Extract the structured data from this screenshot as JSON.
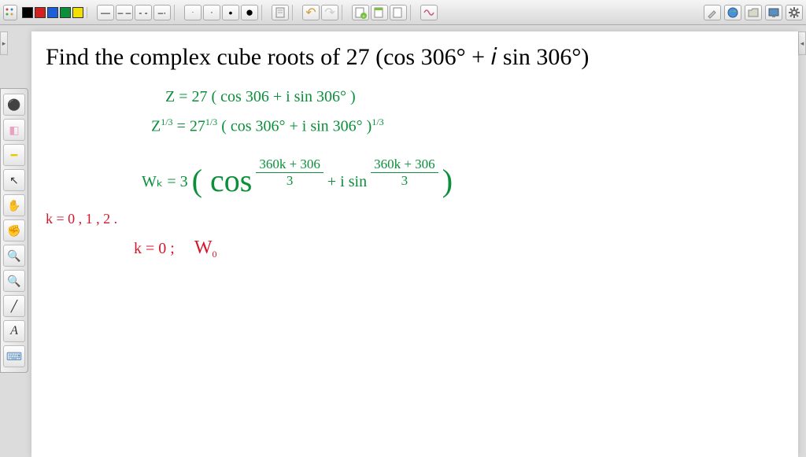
{
  "toolbar": {
    "colors": [
      "#000000",
      "#d42020",
      "#1e5fd9",
      "#0b8f3a",
      "#f2e000"
    ],
    "dash_icons": [
      "—",
      "– –",
      "- -",
      "–·"
    ],
    "dot_icons": [
      "·",
      "·",
      "•",
      "●"
    ],
    "undo_icon": "↶",
    "redo_icon": "↷",
    "note_icons": [
      "📄",
      "📄",
      "📄"
    ],
    "note_accent": [
      "#88cc66",
      "#88cc66",
      "#88cc66"
    ],
    "math_icon": "∿",
    "right_icons": [
      "🖌",
      "🌐",
      "📁",
      "🖥",
      "⚙"
    ]
  },
  "sidebar": {
    "tools": [
      {
        "name": "pen-tool",
        "glyph": "⚫",
        "color": "#d42020"
      },
      {
        "name": "eraser-tool",
        "glyph": "◧",
        "color": "#e9a2c0"
      },
      {
        "name": "highlighter-tool",
        "glyph": "━",
        "color": "#e8c800"
      },
      {
        "name": "pointer-tool",
        "glyph": "↖",
        "color": "#333"
      },
      {
        "name": "hand-open-tool",
        "glyph": "✋",
        "color": "#e8b878"
      },
      {
        "name": "hand-grab-tool",
        "glyph": "✊",
        "color": "#e8b878"
      },
      {
        "name": "zoom-in-tool",
        "glyph": "🔍",
        "color": "#333"
      },
      {
        "name": "zoom-out-tool",
        "glyph": "🔍",
        "color": "#333"
      },
      {
        "name": "line-tool",
        "glyph": "╱",
        "color": "#333"
      },
      {
        "name": "text-tool",
        "glyph": "A",
        "color": "#333",
        "italic": true
      },
      {
        "name": "keyboard-tool",
        "glyph": "⌨",
        "color": "#5a8fbf"
      }
    ]
  },
  "content": {
    "title_pre": "Find the complex cube roots of ",
    "title_math": "27 (cos 306° + 𝑖  sin 306°)",
    "line1_a": "Z =  27 ( cos 306 + i sin 306° )",
    "line2_a": "Z",
    "line2_exp": "1/3",
    "line2_b": "=   27",
    "line2_exp2": "1/3",
    "line2_c": "  ( cos 306° + i sin 306° )",
    "line2_exp3": "1/3",
    "line3_a": "Wₖ  =  3",
    "line3_b": "( cos",
    "line3_frac1_top": "360k + 306",
    "line3_frac1_bot": "3",
    "line3_mid": "+ i sin",
    "line3_frac2_top": "360k + 306",
    "line3_frac2_bot": "3",
    "line3_close": ")",
    "line4": "k = 0 , 1 , 2 .",
    "line5_a": "k = 0 ;",
    "line5_b": "W",
    "line5_sub": "0"
  },
  "styling": {
    "canvas_bg": "#ffffff",
    "body_bg": "#dcdcdc",
    "green": "#0b8f3a",
    "red": "#d4182b",
    "title_fontsize": 30
  }
}
